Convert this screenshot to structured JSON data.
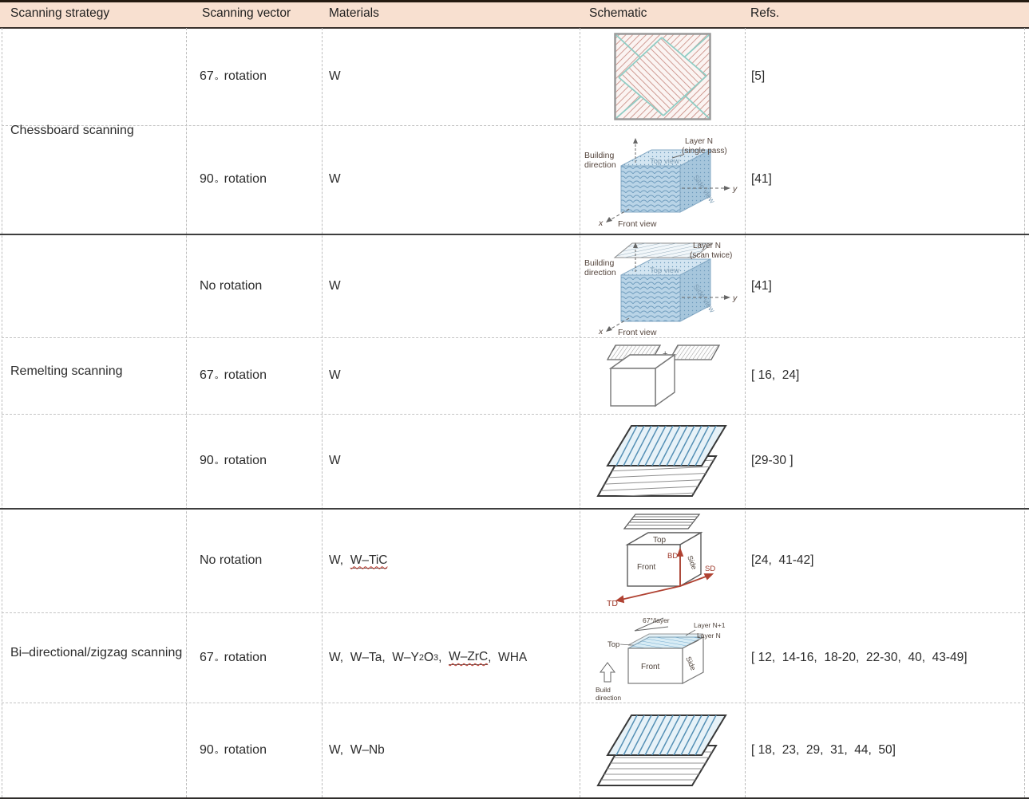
{
  "header": {
    "columns": [
      "Scanning strategy",
      "Scanning vector",
      "Materials",
      "Schematic",
      "Refs."
    ],
    "bg_color": "#f8e0d0"
  },
  "groups": [
    {
      "label": "Chessboard scanning"
    },
    {
      "label": "Remelting scanning"
    },
    {
      "label": "Bi–directional/zigzag scanning"
    }
  ],
  "rows": [
    {
      "vector": "67",
      "deg": "°",
      "vector_word": "rotation",
      "materials": [
        {
          "t": "W"
        }
      ],
      "refs": "[5]"
    },
    {
      "vector": "90",
      "deg": "°",
      "vector_word": "rotation",
      "materials": [
        {
          "t": "W"
        }
      ],
      "refs": "[41]"
    },
    {
      "vector_word": "No rotation",
      "materials": [
        {
          "t": "W"
        }
      ],
      "refs": "[41]"
    },
    {
      "vector": "67",
      "deg": "°",
      "vector_word": "rotation",
      "materials": [
        {
          "t": "W"
        }
      ],
      "refs": "[ 16,  24]"
    },
    {
      "vector": "90",
      "deg": "°",
      "vector_word": "rotation",
      "materials": [
        {
          "t": "W"
        }
      ],
      "refs": "[29-30 ]"
    },
    {
      "vector_word": "No rotation",
      "materials": [
        {
          "t": "W,  "
        },
        {
          "t": "W–TiC",
          "wavy": true
        }
      ],
      "refs": "[24,  41-42]"
    },
    {
      "vector": "67",
      "deg": "°",
      "vector_word": "rotation",
      "materials": [
        {
          "t": "W,  W–Ta,  W–Y"
        },
        {
          "t": "2",
          "sub": true
        },
        {
          "t": "O"
        },
        {
          "t": "3",
          "sub": true
        },
        {
          "t": ",  "
        },
        {
          "t": "W–ZrC",
          "wavy": true
        },
        {
          "t": ",  WHA"
        }
      ],
      "refs": "[ 12,  14-16,  18-20,  22-30,  40,  43-49]"
    },
    {
      "vector": "90",
      "deg": "°",
      "vector_word": "rotation",
      "materials": [
        {
          "t": "W,  W–Nb"
        }
      ],
      "refs": "[ 18,  23,  29,  31,  44,  50]"
    }
  ],
  "schematics": {
    "s2": {
      "building_l1": "Building",
      "building_l2": "direction",
      "layer": "Layer N",
      "pass": "(single pass)",
      "top_view": "Top view",
      "side_view": "Side view",
      "front_view": "Front view",
      "x": "x",
      "y": "y"
    },
    "s3": {
      "building_l1": "Building",
      "building_l2": "direction",
      "layer": "Layer N",
      "pass": "(scan twice)",
      "top_view": "Top view",
      "side_view": "Side view",
      "front_view": "Front view",
      "x": "x",
      "y": "y"
    },
    "s4": {
      "plus": "+"
    },
    "s6": {
      "top": "Top",
      "front": "Front",
      "side": "Side",
      "bd": "BD",
      "sd": "SD",
      "td": "TD"
    },
    "s7": {
      "angle": "67°/layer",
      "layer_np1": "Layer N+1",
      "layer_n": "Layer N",
      "top": "Top",
      "front": "Front",
      "side": "Side",
      "build_l1": "Build",
      "build_l2": "direction"
    }
  },
  "colors": {
    "header_bg": "#f8e0d0",
    "chessboard_hatch": "#c5857c",
    "chessboard_teal": "#8fccc4",
    "cube_blue": "#b9d4e7",
    "arrow_red": "#b04232",
    "hatch_blue": "#5590b5"
  }
}
